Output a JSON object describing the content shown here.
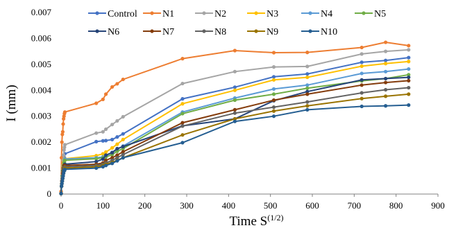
{
  "chart_data": {
    "type": "line",
    "xlabel": "Time S",
    "xlabel_sup": "(1/2)",
    "ylabel": "I (mm)",
    "xlim": [
      0,
      900
    ],
    "ylim": [
      0,
      0.007
    ],
    "x_ticks": [
      "0",
      "100",
      "200",
      "300",
      "400",
      "500",
      "600",
      "700",
      "800",
      "900"
    ],
    "y_ticks": [
      "0",
      "0.001",
      "0.002",
      "0.003",
      "0.004",
      "0.005",
      "0.006",
      "0.007"
    ],
    "x_tick_values": [
      0,
      100,
      200,
      300,
      400,
      500,
      600,
      700,
      800,
      900
    ],
    "y_tick_values": [
      0,
      0.001,
      0.002,
      0.003,
      0.004,
      0.005,
      0.006,
      0.007
    ],
    "grid": false,
    "legend_position": "top",
    "x": [
      0,
      1,
      2,
      3,
      4,
      5,
      6,
      7,
      8,
      9,
      84,
      100,
      107,
      122,
      134,
      148,
      290,
      415,
      508,
      588,
      718,
      775,
      830
    ],
    "series": [
      {
        "name": "Control",
        "color": "#4472C4",
        "values": [
          2e-05,
          0.0003,
          0.0005,
          0.0007,
          0.0009,
          0.001,
          0.0012,
          0.0013,
          0.0014,
          0.00155,
          0.00202,
          0.00205,
          0.00206,
          0.0021,
          0.0022,
          0.00232,
          0.00367,
          0.00412,
          0.00452,
          0.00463,
          0.00508,
          0.00515,
          0.00526
        ]
      },
      {
        "name": "N1",
        "color": "#ED7D31",
        "values": [
          0.0001,
          0.0014,
          0.002,
          0.0023,
          0.0024,
          0.0027,
          0.0029,
          0.003,
          0.0031,
          0.00316,
          0.0035,
          0.00365,
          0.00385,
          0.00413,
          0.00425,
          0.00442,
          0.00522,
          0.00553,
          0.00545,
          0.00546,
          0.00565,
          0.00585,
          0.00572
        ]
      },
      {
        "name": "N2",
        "color": "#A5A5A5",
        "values": [
          2e-05,
          0.0004,
          0.0007,
          0.0009,
          0.0011,
          0.0013,
          0.0015,
          0.0017,
          0.0018,
          0.0019,
          0.00235,
          0.0024,
          0.0025,
          0.00268,
          0.00282,
          0.00298,
          0.00426,
          0.00472,
          0.0049,
          0.00492,
          0.0054,
          0.0055,
          0.00556
        ]
      },
      {
        "name": "N3",
        "color": "#FFC000",
        "values": [
          2e-05,
          0.0003,
          0.0005,
          0.0007,
          0.0009,
          0.0011,
          0.0012,
          0.0013,
          0.0013,
          0.00136,
          0.00148,
          0.00155,
          0.00162,
          0.00178,
          0.00192,
          0.0021,
          0.00348,
          0.004,
          0.0044,
          0.0045,
          0.00493,
          0.00503,
          0.00511
        ]
      },
      {
        "name": "N4",
        "color": "#5B9BD5",
        "values": [
          2e-05,
          0.0003,
          0.0005,
          0.0007,
          0.0009,
          0.001,
          0.0011,
          0.0012,
          0.0013,
          0.00135,
          0.0014,
          0.00143,
          0.00148,
          0.0016,
          0.00172,
          0.00185,
          0.00316,
          0.0037,
          0.00405,
          0.0042,
          0.00465,
          0.00472,
          0.00482
        ]
      },
      {
        "name": "N5",
        "color": "#70AD47",
        "values": [
          2e-05,
          0.0003,
          0.0005,
          0.0007,
          0.0009,
          0.001,
          0.0011,
          0.0012,
          0.0012,
          0.0013,
          0.00136,
          0.0014,
          0.00143,
          0.00152,
          0.00165,
          0.00175,
          0.0031,
          0.00362,
          0.00385,
          0.00408,
          0.00436,
          0.00445,
          0.0046
        ]
      },
      {
        "name": "N6",
        "color": "#264478",
        "values": [
          2e-05,
          0.0003,
          0.0005,
          0.0006,
          0.0008,
          0.0009,
          0.001,
          0.0011,
          0.0011,
          0.00115,
          0.00125,
          0.00135,
          0.0015,
          0.0016,
          0.00175,
          0.00183,
          0.00263,
          0.0029,
          0.0036,
          0.00395,
          0.0044,
          0.00445,
          0.0045
        ]
      },
      {
        "name": "N7",
        "color": "#843C0C",
        "values": [
          2e-05,
          0.0003,
          0.0005,
          0.0006,
          0.0008,
          0.0009,
          0.001,
          0.0011,
          0.0011,
          0.0011,
          0.00115,
          0.0012,
          0.0013,
          0.0014,
          0.0015,
          0.00163,
          0.00275,
          0.00325,
          0.00362,
          0.00385,
          0.0042,
          0.0043,
          0.00437
        ]
      },
      {
        "name": "N8",
        "color": "#636363",
        "values": [
          2e-05,
          0.0003,
          0.0005,
          0.0006,
          0.0007,
          0.0008,
          0.0009,
          0.001,
          0.001,
          0.00105,
          0.0011,
          0.00115,
          0.0012,
          0.0013,
          0.0014,
          0.00152,
          0.00262,
          0.00312,
          0.00335,
          0.00355,
          0.0039,
          0.00402,
          0.0041
        ]
      },
      {
        "name": "N9",
        "color": "#997300",
        "values": [
          2e-05,
          0.0003,
          0.0004,
          0.0005,
          0.0006,
          0.0007,
          0.0008,
          0.0009,
          0.0009,
          0.001,
          0.00105,
          0.0011,
          0.00115,
          0.00122,
          0.0013,
          0.0014,
          0.00228,
          0.0029,
          0.0032,
          0.0034,
          0.00368,
          0.00377,
          0.00385
        ]
      },
      {
        "name": "N10",
        "color": "#255E91",
        "values": [
          2e-05,
          0.0003,
          0.0004,
          0.0005,
          0.0006,
          0.0007,
          0.0008,
          0.0009,
          0.0009,
          0.00095,
          0.001,
          0.00105,
          0.0011,
          0.00118,
          0.00128,
          0.0014,
          0.00198,
          0.0028,
          0.003,
          0.00325,
          0.00338,
          0.0034,
          0.00343
        ]
      }
    ]
  }
}
